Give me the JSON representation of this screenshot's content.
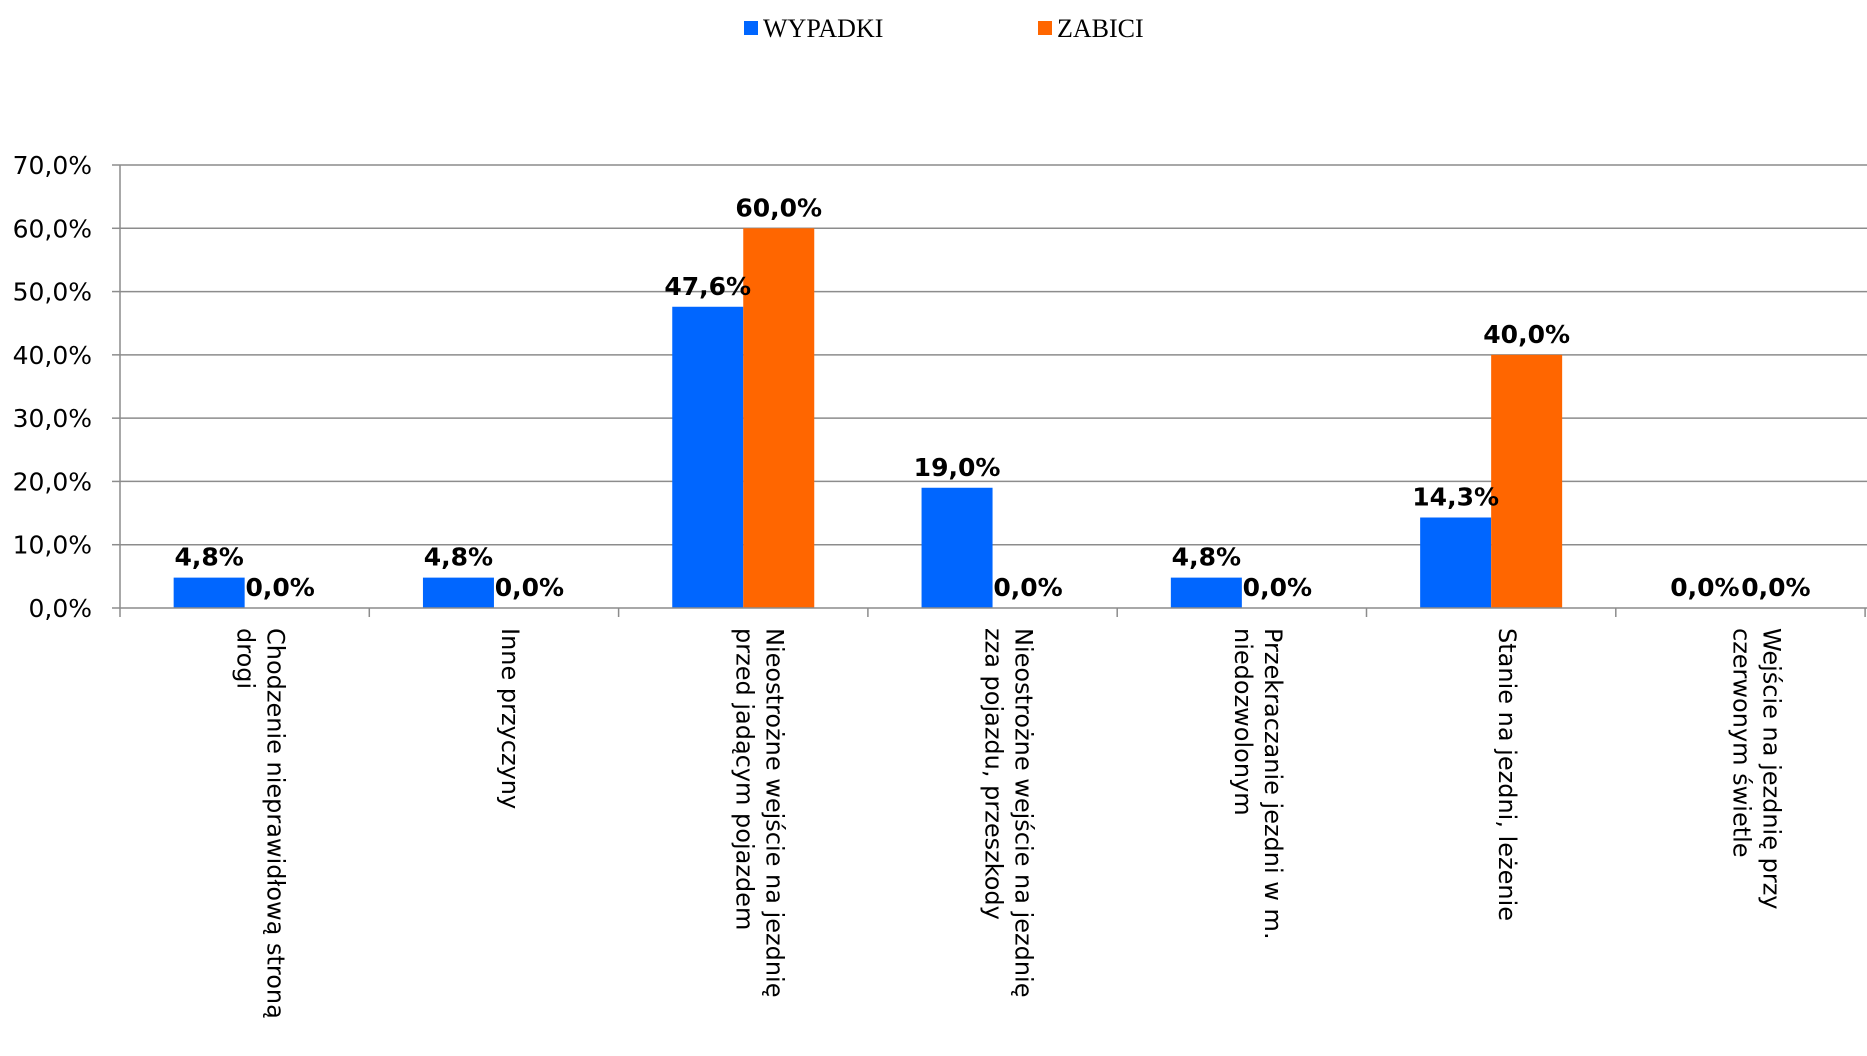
{
  "chart_data": {
    "type": "bar",
    "categories": [
      [
        "Chodzenie nieprawidłową stroną",
        "drogi"
      ],
      [
        "Inne przyczyny"
      ],
      [
        "Nieostrożne wejście na jezdnię",
        "przed jadącym pojazdem"
      ],
      [
        "Nieostrożne wejście na jezdnię",
        "zza pojazdu, przeszkody"
      ],
      [
        "Przekraczanie jezdni w m.",
        "niedozwolonym"
      ],
      [
        "Stanie na jezdni, leżenie"
      ],
      [
        "Wejście na jezdnię przy",
        "czerwonym świetle"
      ]
    ],
    "series": [
      {
        "name": "WYPADKI",
        "color": "#0066ff",
        "values": [
          4.8,
          4.8,
          47.6,
          19.0,
          4.8,
          14.3,
          0.0
        ],
        "labels": [
          "4,8%",
          "4,8%",
          "47,6%",
          "19,0%",
          "4,8%",
          "14,3%",
          "0,0%"
        ]
      },
      {
        "name": "ZABICI",
        "color": "#ff6600",
        "values": [
          0.0,
          0.0,
          60.0,
          0.0,
          0.0,
          40.0,
          0.0
        ],
        "labels": [
          "0,0%",
          "0,0%",
          "60,0%",
          "0,0%",
          "0,0%",
          "40,0%",
          "0,0%"
        ]
      }
    ],
    "ylim": [
      0,
      70
    ],
    "yticks": [
      0,
      10,
      20,
      30,
      40,
      50,
      60,
      70
    ],
    "ytick_labels": [
      "0,0%",
      "10,0%",
      "20,0%",
      "30,0%",
      "40,0%",
      "50,0%",
      "60,0%",
      "70,0%"
    ],
    "grid": true,
    "legend": "top-center"
  }
}
